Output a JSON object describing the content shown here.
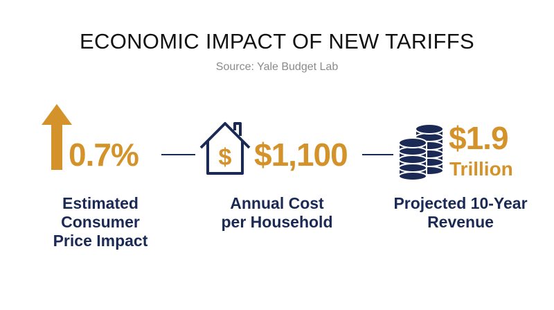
{
  "header": {
    "title": "ECONOMIC IMPACT OF NEW TARIFFS",
    "source": "Source: Yale Budget Lab"
  },
  "items": [
    {
      "value": "0.7%",
      "label_lines": [
        "Estimated",
        "Consumer",
        "Price Impact"
      ]
    },
    {
      "value": "$1,100",
      "label_lines": [
        "Annual Cost",
        "per Household"
      ]
    },
    {
      "value": "$1.9",
      "value_unit": "Trillion",
      "label_lines": [
        "Projected 10-Year",
        "Revenue"
      ]
    }
  ]
}
